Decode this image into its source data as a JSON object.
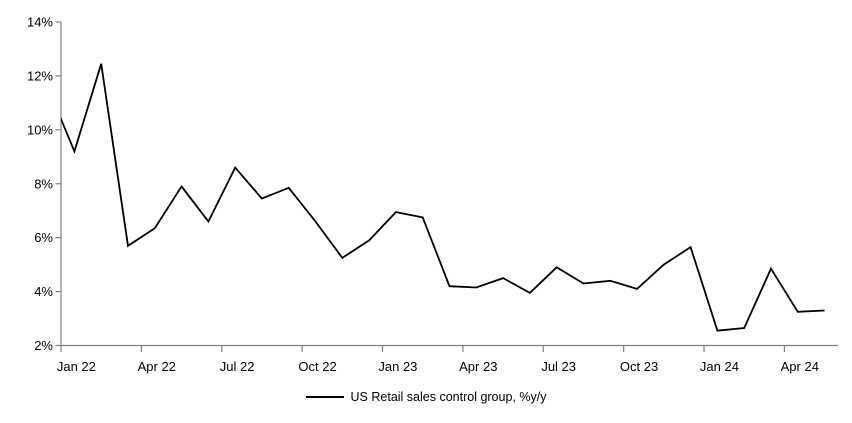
{
  "chart_data": {
    "type": "line",
    "title": "",
    "legend": "US Retail sales control group, %y/y",
    "legend_position": "bottom-center",
    "grid": false,
    "ylim": [
      2,
      14
    ],
    "y_tick_step": 2,
    "y_tick_labels": [
      "2%",
      "4%",
      "6%",
      "8%",
      "10%",
      "12%",
      "14%"
    ],
    "x_tick_labels": [
      "Jan 22",
      "Apr 22",
      "Jul 22",
      "Oct 22",
      "Jan 23",
      "Apr 23",
      "Jul 23",
      "Oct 23",
      "Jan 24",
      "Apr 24"
    ],
    "categories": [
      "Dec 21",
      "Jan 22",
      "Feb 22",
      "Mar 22",
      "Apr 22",
      "May 22",
      "Jun 22",
      "Jul 22",
      "Aug 22",
      "Sep 22",
      "Oct 22",
      "Nov 22",
      "Dec 22",
      "Jan 23",
      "Feb 23",
      "Mar 23",
      "Apr 23",
      "May 23",
      "Jun 23",
      "Jul 23",
      "Aug 23",
      "Sep 23",
      "Oct 23",
      "Nov 23",
      "Dec 23",
      "Jan 24",
      "Feb 24",
      "Mar 24",
      "Apr 24",
      "May 24"
    ],
    "values": [
      11.6,
      9.2,
      12.45,
      5.7,
      6.35,
      7.9,
      6.6,
      8.6,
      7.45,
      7.85,
      6.6,
      5.25,
      5.9,
      6.95,
      6.75,
      4.2,
      4.15,
      4.5,
      3.95,
      4.9,
      4.3,
      4.4,
      4.1,
      5.0,
      5.65,
      2.55,
      2.65,
      4.85,
      3.25,
      3.3
    ],
    "first_point_partially_clipped": true,
    "series_color": "#000000",
    "axis_color": "#808080",
    "text_color": "#000000"
  }
}
